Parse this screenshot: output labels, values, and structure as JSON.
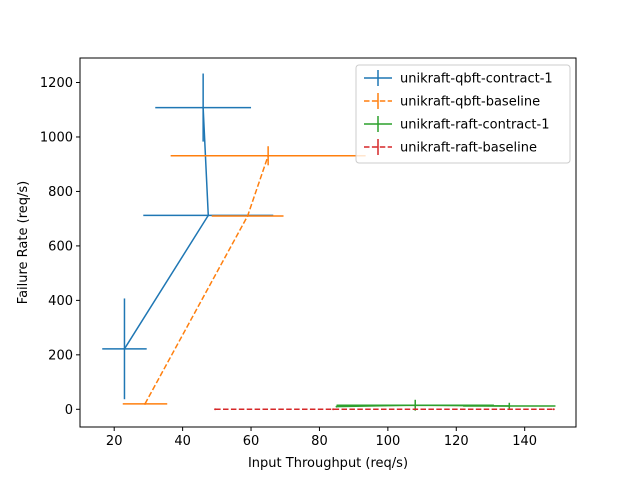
{
  "chart_data": {
    "type": "line",
    "title": "",
    "xlabel": "Input Throughput (req/s)",
    "ylabel": "Failure Rate (req/s)",
    "xlim": [
      10,
      155
    ],
    "ylim": [
      -65,
      1290
    ],
    "xticks": [
      20,
      40,
      60,
      80,
      100,
      120,
      140
    ],
    "yticks": [
      0,
      200,
      400,
      600,
      800,
      1000,
      1200
    ],
    "grid": false,
    "legend_position": "top-right",
    "series": [
      {
        "name": "unikraft-qbft-contract-1",
        "color": "#1f77b4",
        "dashed": false,
        "points": [
          {
            "x": 23,
            "y": 222,
            "xerr": 6.5,
            "yerr": 185
          },
          {
            "x": 47.5,
            "y": 712,
            "xerr": 19,
            "yerr": 0
          },
          {
            "x": 46,
            "y": 1108,
            "xerr": 14,
            "yerr": 125
          }
        ]
      },
      {
        "name": "unikraft-qbft-baseline",
        "color": "#ff7f0e",
        "dashed": true,
        "points": [
          {
            "x": 29,
            "y": 20,
            "xerr": 6.5,
            "yerr": 0
          },
          {
            "x": 59,
            "y": 710,
            "xerr": 10.5,
            "yerr": 0
          },
          {
            "x": 65,
            "y": 931,
            "xerr": 28.5,
            "yerr": 35
          }
        ]
      },
      {
        "name": "unikraft-raft-contract-1",
        "color": "#2ca02c",
        "dashed": false,
        "points": [
          {
            "x": 85,
            "y": 10,
            "xerr": 0,
            "yerr": 0
          },
          {
            "x": 108,
            "y": 15,
            "xerr": 23,
            "yerr": 20
          },
          {
            "x": 135.5,
            "y": 12,
            "xerr": 13.5,
            "yerr": 12
          }
        ]
      },
      {
        "name": "unikraft-raft-baseline",
        "color": "#d62728",
        "dashed": true,
        "points": [
          {
            "x": 49.5,
            "y": 0,
            "xerr": 0,
            "yerr": 0
          },
          {
            "x": 84,
            "y": 0,
            "xerr": 0,
            "yerr": 0
          },
          {
            "x": 108,
            "y": 0,
            "xerr": 0,
            "yerr": 0
          },
          {
            "x": 148.5,
            "y": 0,
            "xerr": 0,
            "yerr": 0
          }
        ]
      }
    ]
  }
}
